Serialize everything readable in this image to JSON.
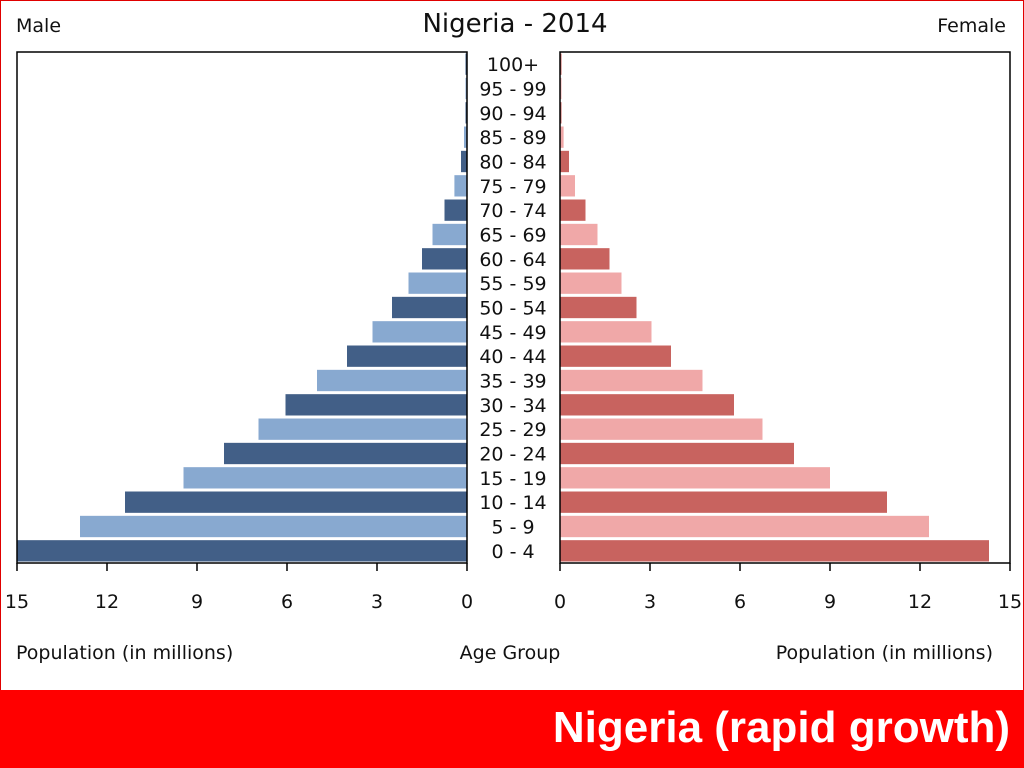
{
  "slide": {
    "title": "Nigeria (rapid growth)",
    "banner_color": "#ff0000"
  },
  "chart_data": {
    "type": "bar",
    "subtype": "population-pyramid",
    "title": "Nigeria - 2014",
    "left_label": "Male",
    "right_label": "Female",
    "xlabel_left": "Population (in millions)",
    "xlabel_center": "Age Group",
    "xlabel_right": "Population (in millions)",
    "xlim": [
      0,
      15
    ],
    "xticks": [
      15,
      12,
      9,
      6,
      3,
      0
    ],
    "xticks_right": [
      0,
      3,
      6,
      9,
      12,
      15
    ],
    "categories": [
      "100+",
      "95 - 99",
      "90 - 94",
      "85 - 89",
      "80 - 84",
      "75 - 79",
      "70 - 74",
      "65 - 69",
      "60 - 64",
      "55 - 59",
      "50 - 54",
      "45 - 49",
      "40 - 44",
      "35 - 39",
      "30 - 34",
      "25 - 29",
      "20 - 24",
      "15 - 19",
      "10 - 14",
      "5 - 9",
      "0 - 4"
    ],
    "series": [
      {
        "name": "Male",
        "side": "left",
        "colors": [
          "#425f87",
          "#88a9d0"
        ],
        "values": [
          0.02,
          0.03,
          0.05,
          0.1,
          0.2,
          0.42,
          0.75,
          1.15,
          1.5,
          1.95,
          2.5,
          3.15,
          4.0,
          5.0,
          6.05,
          6.95,
          8.1,
          9.45,
          11.4,
          12.9,
          15.0
        ]
      },
      {
        "name": "Female",
        "side": "right",
        "colors": [
          "#c8635f",
          "#f0a8a8"
        ],
        "values": [
          0.02,
          0.03,
          0.05,
          0.12,
          0.3,
          0.5,
          0.85,
          1.25,
          1.65,
          2.05,
          2.55,
          3.05,
          3.7,
          4.75,
          5.8,
          6.75,
          7.8,
          9.0,
          10.9,
          12.3,
          14.3
        ]
      }
    ],
    "grid": false,
    "legend": "none"
  }
}
